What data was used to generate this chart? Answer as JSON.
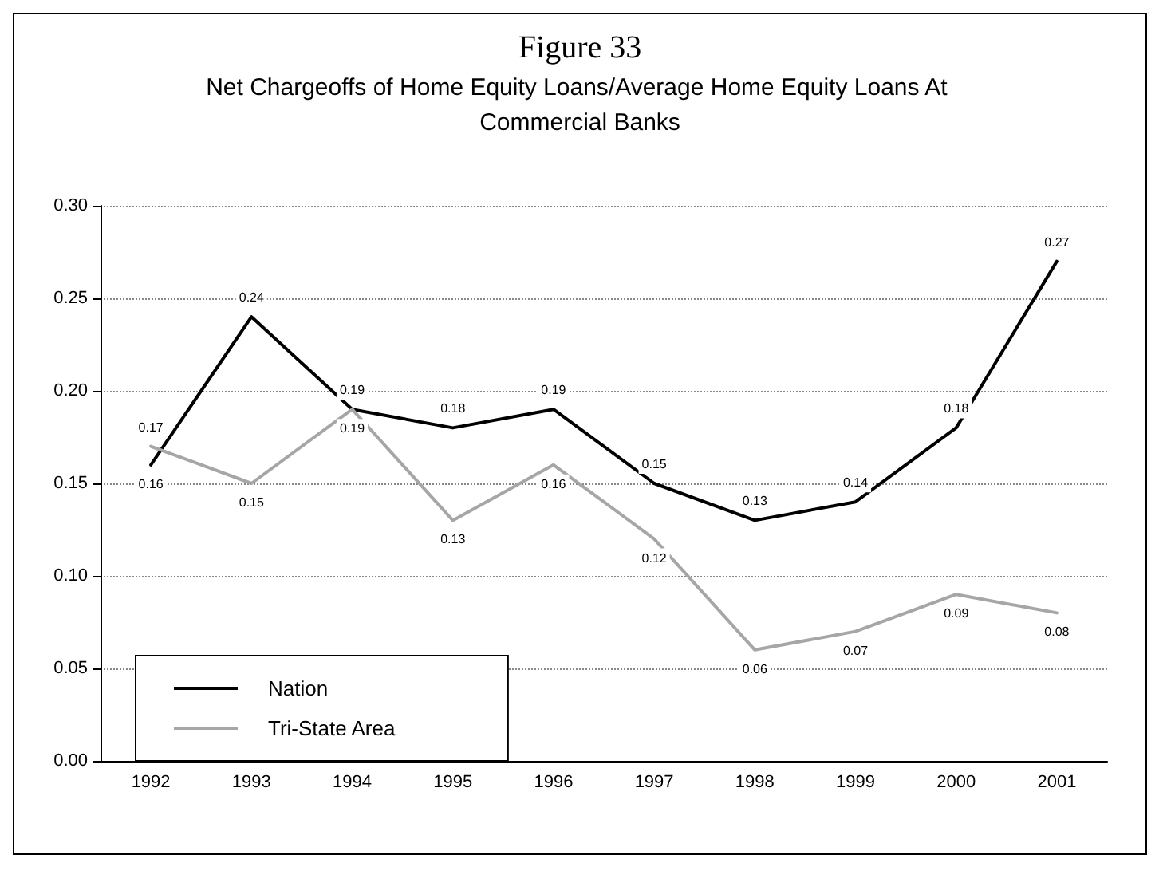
{
  "chart_data": {
    "type": "line",
    "title": "Figure 33",
    "subtitle": "Net Chargeoffs of Home Equity Loans/Average Home Equity Loans At Commercial Banks",
    "categories": [
      "1992",
      "1993",
      "1994",
      "1995",
      "1996",
      "1997",
      "1998",
      "1999",
      "2000",
      "2001"
    ],
    "series": [
      {
        "name": "Nation",
        "color": "#000000",
        "values": [
          0.16,
          0.24,
          0.19,
          0.18,
          0.19,
          0.15,
          0.13,
          0.14,
          0.18,
          0.27
        ]
      },
      {
        "name": "Tri-State Area",
        "color": "#a6a6a6",
        "values": [
          0.17,
          0.15,
          0.19,
          0.13,
          0.16,
          0.12,
          0.06,
          0.07,
          0.09,
          0.08
        ]
      }
    ],
    "ylim": [
      0,
      0.3
    ],
    "yticks": [
      {
        "value": 0,
        "label": "0.00"
      },
      {
        "value": 0.05,
        "label": "0.05"
      },
      {
        "value": 0.1,
        "label": "0.10"
      },
      {
        "value": 0.15,
        "label": "0.15"
      },
      {
        "value": 0.2,
        "label": "0.20"
      },
      {
        "value": 0.25,
        "label": "0.25"
      },
      {
        "value": 0.3,
        "label": "0.30"
      }
    ],
    "grid": "y",
    "legend": "bottom left",
    "data_labels": true,
    "marker": "none",
    "line_style": "solid"
  }
}
